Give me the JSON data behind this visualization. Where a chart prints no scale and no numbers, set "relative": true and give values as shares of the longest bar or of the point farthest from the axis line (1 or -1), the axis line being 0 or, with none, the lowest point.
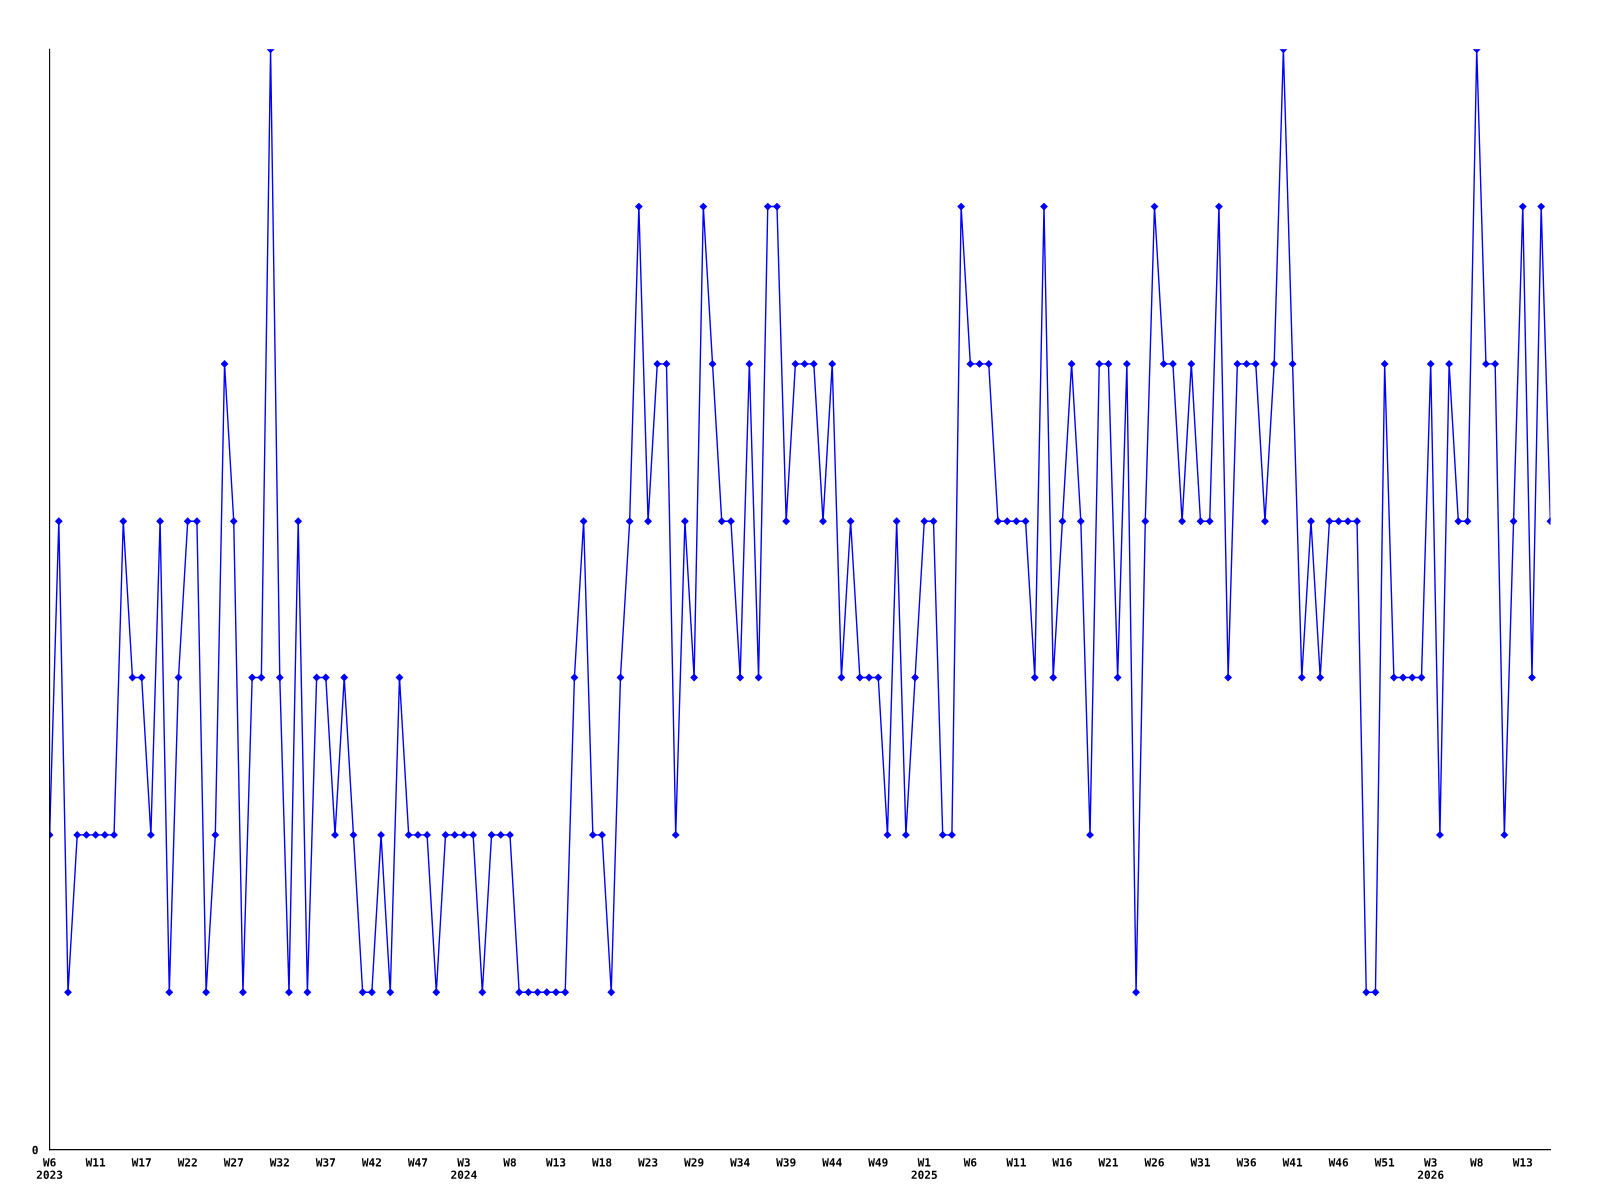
{
  "chart_data": {
    "type": "line",
    "relative": true,
    "marker": "diamond",
    "line_style": "solid",
    "grid": false,
    "annotations": [
      "0"
    ],
    "categories": [
      "W6\n2023",
      null,
      null,
      null,
      null,
      "W11",
      null,
      null,
      null,
      null,
      "W17",
      null,
      null,
      null,
      null,
      "W22",
      null,
      null,
      null,
      null,
      "W27",
      null,
      null,
      null,
      null,
      "W32",
      null,
      null,
      null,
      null,
      "W37",
      null,
      null,
      null,
      null,
      "W42",
      null,
      null,
      null,
      null,
      "W47",
      null,
      null,
      null,
      null,
      "W3\n2024",
      null,
      null,
      null,
      null,
      "W8",
      null,
      null,
      null,
      null,
      "W13",
      null,
      null,
      null,
      null,
      "W18",
      null,
      null,
      null,
      null,
      "W23",
      null,
      null,
      null,
      null,
      "W29",
      null,
      null,
      null,
      null,
      "W34",
      null,
      null,
      null,
      null,
      "W39",
      null,
      null,
      null,
      null,
      "W44",
      null,
      null,
      null,
      null,
      "W49",
      null,
      null,
      null,
      null,
      "W1\n2025",
      null,
      null,
      null,
      null,
      "W6",
      null,
      null,
      null,
      null,
      "W11",
      null,
      null,
      null,
      null,
      "W16",
      null,
      null,
      null,
      null,
      "W21",
      null,
      null,
      null,
      null,
      "W26",
      null,
      null,
      null,
      null,
      "W31",
      null,
      null,
      null,
      null,
      "W36",
      null,
      null,
      null,
      null,
      "W41",
      null,
      null,
      null,
      null,
      "W46",
      null,
      null,
      null,
      null,
      "W51",
      null,
      null,
      null,
      null,
      "W3\n2026",
      null,
      null,
      null,
      null,
      "W8",
      null,
      null,
      null,
      null,
      "W13",
      null,
      null,
      null
    ],
    "series": [
      {
        "color": "#0000ff",
        "values": [
          0.286,
          0.571,
          0.143,
          0.286,
          0.286,
          0.286,
          0.286,
          0.286,
          0.571,
          0.429,
          0.429,
          0.286,
          0.571,
          0.143,
          0.429,
          0.571,
          0.571,
          0.143,
          0.286,
          0.714,
          0.571,
          0.143,
          0.429,
          0.429,
          1,
          0.429,
          0.143,
          0.571,
          0.143,
          0.429,
          0.429,
          0.286,
          0.429,
          0.286,
          0.143,
          0.143,
          0.286,
          0.143,
          0.429,
          0.286,
          0.286,
          0.286,
          0.143,
          0.286,
          0.286,
          0.286,
          0.286,
          0.143,
          0.286,
          0.286,
          0.286,
          0.143,
          0.143,
          0.143,
          0.143,
          0.143,
          0.143,
          0.429,
          0.571,
          0.286,
          0.286,
          0.143,
          0.429,
          0.571,
          0.857,
          0.571,
          0.714,
          0.714,
          0.286,
          0.571,
          0.429,
          0.857,
          0.714,
          0.571,
          0.571,
          0.429,
          0.714,
          0.429,
          0.857,
          0.857,
          0.571,
          0.714,
          0.714,
          0.714,
          0.571,
          0.714,
          0.429,
          0.571,
          0.429,
          0.429,
          0.429,
          0.286,
          0.571,
          0.286,
          0.429,
          0.571,
          0.571,
          0.286,
          0.286,
          0.857,
          0.714,
          0.714,
          0.714,
          0.571,
          0.571,
          0.571,
          0.571,
          0.429,
          0.857,
          0.429,
          0.571,
          0.714,
          0.571,
          0.286,
          0.714,
          0.714,
          0.429,
          0.714,
          0.143,
          0.571,
          0.857,
          0.714,
          0.714,
          0.571,
          0.714,
          0.571,
          0.571,
          0.857,
          0.429,
          0.714,
          0.714,
          0.714,
          0.571,
          0.714,
          1,
          0.714,
          0.429,
          0.571,
          0.429,
          0.571,
          0.571,
          0.571,
          0.571,
          0.143,
          0.143,
          0.714,
          0.429,
          0.429,
          0.429,
          0.429,
          0.714,
          0.286,
          0.714,
          0.571,
          0.571,
          1,
          0.714,
          0.714,
          0.286,
          0.571,
          0.857,
          0.429,
          0.857,
          0.571
        ]
      }
    ]
  }
}
